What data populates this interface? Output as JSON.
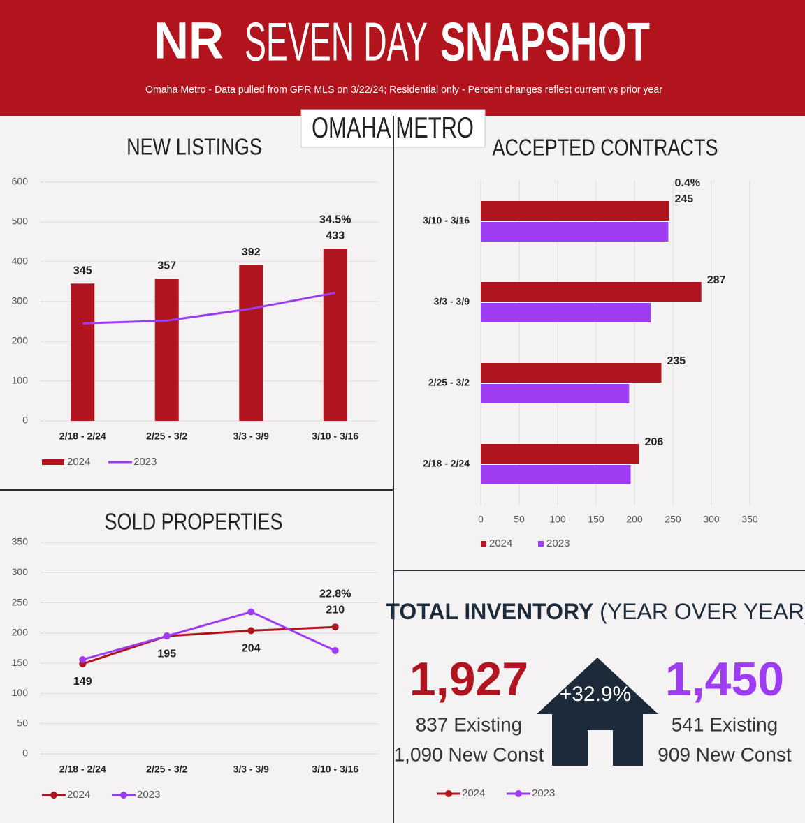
{
  "header": {
    "logo": "NR",
    "title_light": "SEVEN DAY",
    "title_bold": "SNAPSHOT",
    "subtitle": "Omaha Metro - Data pulled from GPR MLS on 3/22/24; Residential only - Percent changes reflect current vs prior year",
    "region": "OMAHA METRO"
  },
  "chart_data": [
    {
      "type": "bar",
      "title": "NEW LISTINGS",
      "categories": [
        "2/18 - 2/24",
        "2/25 - 3/2",
        "3/3 - 3/9",
        "3/10 - 3/16"
      ],
      "series": [
        {
          "name": "2024",
          "color": "#b0151f",
          "type": "bar",
          "labels": true,
          "values": [
            345,
            357,
            392,
            433
          ]
        },
        {
          "name": "2023",
          "color": "#9d3cf2",
          "type": "line",
          "values": [
            245,
            252,
            282,
            322
          ]
        }
      ],
      "annotation": "34.5%",
      "ylim": [
        0,
        600
      ],
      "yticks": [
        0,
        100,
        200,
        300,
        400,
        500,
        600
      ],
      "grid": true
    },
    {
      "type": "barh",
      "title": "ACCEPTED CONTRACTS",
      "categories": [
        "3/10 - 3/16",
        "3/3 - 3/9",
        "2/25 - 3/2",
        "2/18 - 2/24"
      ],
      "series": [
        {
          "name": "2024",
          "color": "#b0151f",
          "labels": true,
          "values": [
            245,
            287,
            235,
            206
          ]
        },
        {
          "name": "2023",
          "color": "#9d3cf2",
          "values": [
            244,
            221,
            193,
            195
          ]
        }
      ],
      "annotation": "0.4%",
      "xlim": [
        0,
        350
      ],
      "xticks": [
        0,
        50,
        100,
        150,
        200,
        250,
        300,
        350
      ],
      "grid": true
    },
    {
      "type": "line",
      "title": "SOLD PROPERTIES",
      "categories": [
        "2/18 - 2/24",
        "2/25 - 3/2",
        "3/3 - 3/9",
        "3/10 - 3/16"
      ],
      "series": [
        {
          "name": "2024",
          "color": "#b0151f",
          "labels": true,
          "values": [
            149,
            195,
            204,
            210
          ]
        },
        {
          "name": "2023",
          "color": "#9d3cf2",
          "values": [
            156,
            195,
            235,
            171
          ]
        }
      ],
      "annotation": "22.8%",
      "ylim": [
        0,
        350
      ],
      "yticks": [
        0,
        50,
        100,
        150,
        200,
        250,
        300,
        350
      ],
      "grid": true
    }
  ],
  "inventory": {
    "title_bold": "TOTAL INVENTORY",
    "title_light": "(YEAR OVER YEAR)",
    "change": "+32.9%",
    "series": [
      {
        "name": "2024",
        "color": "#b0151f",
        "total": "1,927",
        "existing": "837 Existing",
        "new_const": "1,090 New Const"
      },
      {
        "name": "2023",
        "color": "#9d3cf2",
        "total": "1,450",
        "existing": "541 Existing",
        "new_const": "909 New Const"
      }
    ]
  }
}
